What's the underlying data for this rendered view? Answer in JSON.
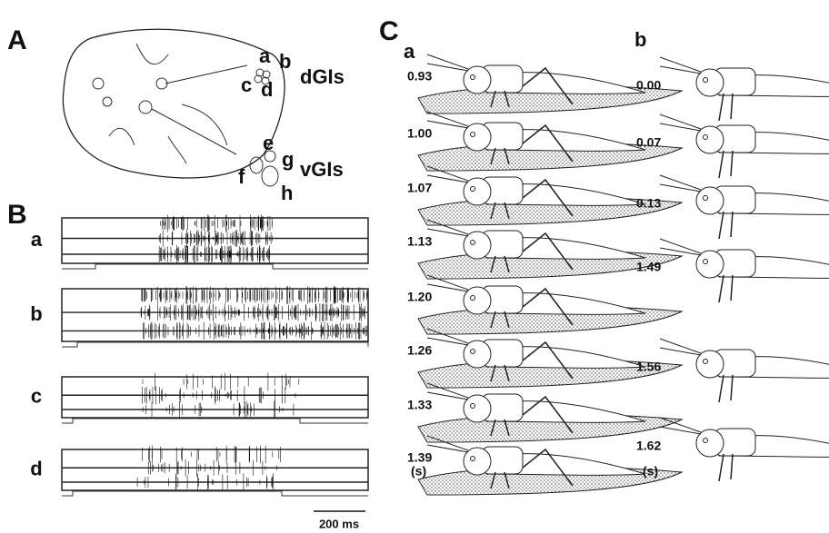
{
  "panel_a": {
    "label": "A",
    "dorsal": {
      "cells": [
        "a",
        "b",
        "c",
        "d"
      ],
      "name": "dGIs"
    },
    "ventral": {
      "cells": [
        "e",
        "f",
        "g",
        "h"
      ],
      "name": "vGIs"
    }
  },
  "panel_b": {
    "label": "B",
    "traces": [
      "a",
      "b",
      "c",
      "d"
    ],
    "scale_bar": "200 ms"
  },
  "panel_c": {
    "label": "C",
    "columns": [
      {
        "label": "a",
        "times": [
          "0.93",
          "1.00",
          "1.07",
          "1.13",
          "1.20",
          "1.26",
          "1.33",
          "1.39"
        ],
        "unit": "(s)"
      },
      {
        "label": "b",
        "times": [
          "0.00",
          "0.07",
          "0.13",
          "1.49",
          "1.56",
          "1.62"
        ],
        "unit": "(s)"
      }
    ]
  }
}
